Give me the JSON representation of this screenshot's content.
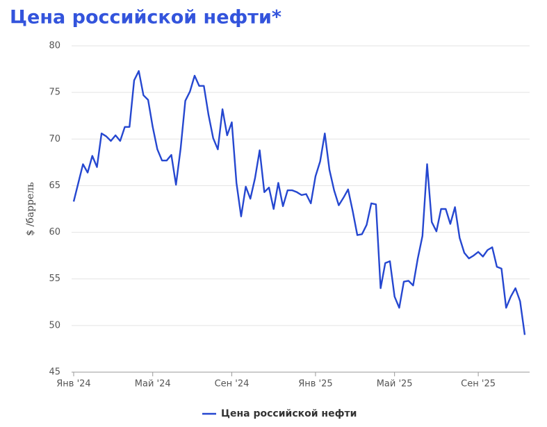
{
  "chart_data": {
    "type": "line",
    "title": "Цена российской нефти*",
    "ylabel": "$ /баррель",
    "categories": [
      "Янв '24",
      null,
      null,
      null,
      null,
      null,
      null,
      null,
      null,
      null,
      null,
      null,
      null,
      null,
      null,
      null,
      null,
      "Май '24",
      null,
      null,
      null,
      null,
      null,
      null,
      null,
      null,
      null,
      null,
      null,
      null,
      null,
      null,
      null,
      null,
      "Сен '24",
      null,
      null,
      null,
      null,
      null,
      null,
      null,
      null,
      null,
      null,
      null,
      null,
      null,
      null,
      null,
      null,
      null,
      "Янв '25",
      null,
      null,
      null,
      null,
      null,
      null,
      null,
      null,
      null,
      null,
      null,
      null,
      null,
      null,
      null,
      null,
      "Май '25",
      null,
      null,
      null,
      null,
      null,
      null,
      null,
      null,
      null,
      null,
      null,
      null,
      null,
      null,
      null,
      null,
      null,
      "Сен '25",
      null,
      null,
      null,
      null,
      null,
      null,
      null,
      null,
      null,
      null
    ],
    "series": [
      {
        "name": "Цена российской нефти",
        "color": "#2547d0",
        "values": [
          63.3,
          65.3,
          67.3,
          66.4,
          68.2,
          67.0,
          70.6,
          70.3,
          69.8,
          70.4,
          69.8,
          71.3,
          71.3,
          76.3,
          77.3,
          74.7,
          74.2,
          71.3,
          68.9,
          67.7,
          67.7,
          68.3,
          65.1,
          69.0,
          74.1,
          75.1,
          76.8,
          75.7,
          75.7,
          72.6,
          70.1,
          68.9,
          73.2,
          70.4,
          71.8,
          65.3,
          61.7,
          64.9,
          63.6,
          65.8,
          68.8,
          64.3,
          64.8,
          62.5,
          65.3,
          62.8,
          64.5,
          64.5,
          64.3,
          64.0,
          64.1,
          63.1,
          66.0,
          67.6,
          70.6,
          66.7,
          64.5,
          62.9,
          63.7,
          64.6,
          62.3,
          59.7,
          59.8,
          60.8,
          63.1,
          63.0,
          54.0,
          56.7,
          56.9,
          53.1,
          51.9,
          54.7,
          54.8,
          54.3,
          57.2,
          59.6,
          67.3,
          61.1,
          60.1,
          62.5,
          62.5,
          60.9,
          62.7,
          59.4,
          57.8,
          57.2,
          57.5,
          57.9,
          57.4,
          58.1,
          58.4,
          56.3,
          56.1,
          51.9,
          53.1,
          54.0,
          52.6,
          49.0
        ]
      }
    ],
    "ylim": [
      45,
      80
    ],
    "yticks": [
      45,
      50,
      55,
      60,
      65,
      70,
      75,
      80
    ],
    "grid": true,
    "legend": "bottom"
  }
}
